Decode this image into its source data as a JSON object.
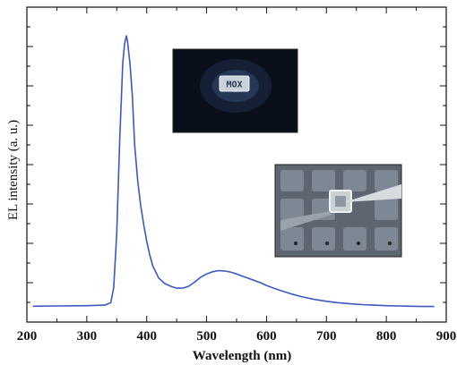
{
  "chart_data": {
    "type": "line",
    "title": "",
    "xlabel": "Wavelength (nm)",
    "ylabel": "EL intensity (a. u.)",
    "xlim": [
      200,
      900
    ],
    "ylim": [
      0,
      1
    ],
    "xticks": [
      200,
      300,
      400,
      500,
      600,
      700,
      800,
      900
    ],
    "yticks_labeled": false,
    "grid": false,
    "legend": "none",
    "series": [
      {
        "color": "#3d57c4",
        "x": [
          210,
          250,
          300,
          330,
          340,
          345,
          350,
          355,
          360,
          363,
          366,
          368,
          372,
          376,
          380,
          385,
          390,
          395,
          400,
          405,
          410,
          420,
          430,
          440,
          450,
          460,
          470,
          480,
          490,
          500,
          510,
          520,
          530,
          540,
          550,
          560,
          570,
          580,
          590,
          600,
          620,
          640,
          660,
          680,
          700,
          720,
          740,
          760,
          780,
          800,
          820,
          840,
          860,
          880
        ],
        "y": [
          0.012,
          0.013,
          0.014,
          0.016,
          0.025,
          0.08,
          0.28,
          0.62,
          0.9,
          0.97,
          1.0,
          0.98,
          0.9,
          0.78,
          0.6,
          0.47,
          0.38,
          0.31,
          0.25,
          0.2,
          0.16,
          0.115,
          0.095,
          0.085,
          0.078,
          0.078,
          0.085,
          0.1,
          0.118,
          0.13,
          0.138,
          0.142,
          0.141,
          0.137,
          0.13,
          0.122,
          0.114,
          0.106,
          0.098,
          0.088,
          0.072,
          0.058,
          0.046,
          0.037,
          0.03,
          0.025,
          0.021,
          0.018,
          0.016,
          0.014,
          0.013,
          0.012,
          0.011,
          0.011
        ]
      }
    ]
  },
  "insets": [
    {
      "name": "mox-chip-photo",
      "label": "MOX"
    },
    {
      "name": "probe-contact-photo"
    }
  ]
}
